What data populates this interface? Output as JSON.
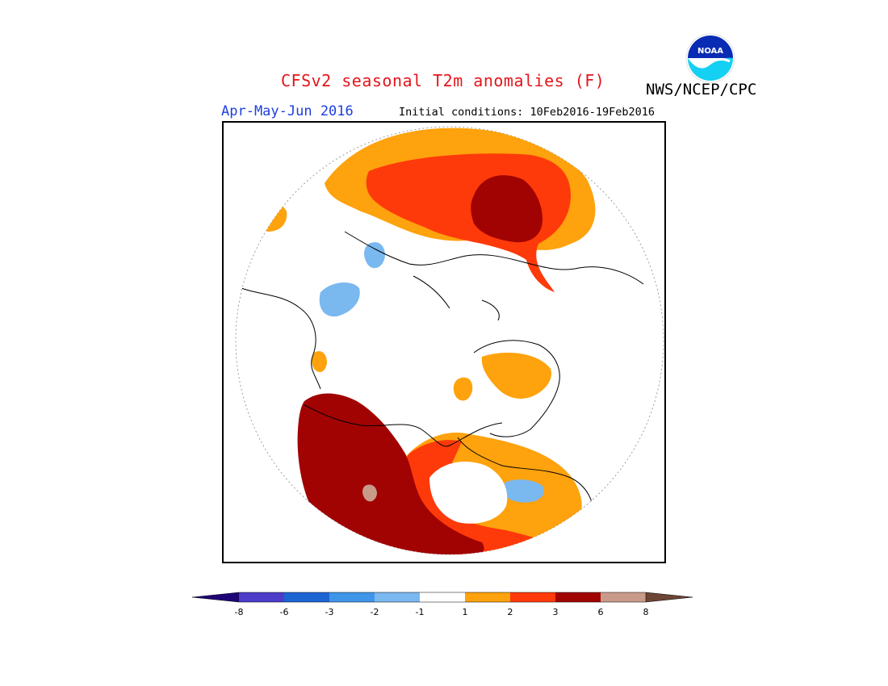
{
  "header": {
    "title": "CFSv2 seasonal T2m anomalies (F)",
    "agency": "NWS/NCEP/CPC",
    "season": "Apr-May-Jun 2016",
    "initial_conditions": "Initial conditions: 10Feb2016-19Feb2016",
    "logo_text": "NOAA"
  },
  "colorbar": {
    "ticks": [
      "-8",
      "-6",
      "-3",
      "-2",
      "-1",
      "1",
      "2",
      "3",
      "6",
      "8"
    ],
    "colors": {
      "below_-8": "#1e0577",
      "-8_-6": "#4c3cc9",
      "-6_-3": "#1c64d2",
      "-3_-2": "#3f95e8",
      "-2_-1": "#7ab8f0",
      "-1_1": "#ffffff",
      "1_2": "#fea20d",
      "2_3": "#fe3a0a",
      "3_6": "#a10303",
      "6_8": "#c89a8a",
      "above_8": "#6d4534"
    }
  },
  "map": {
    "projection": "north-polar-stereographic",
    "regions": [
      {
        "name": "eurasia-north-warm",
        "category": "1_2"
      },
      {
        "name": "siberia-warm",
        "category": "2_3"
      },
      {
        "name": "east-siberia-very-warm",
        "category": "3_6"
      },
      {
        "name": "north-america-very-warm",
        "category": "3_6"
      },
      {
        "name": "central-asia-cool",
        "category": "-2_-1"
      }
    ]
  }
}
